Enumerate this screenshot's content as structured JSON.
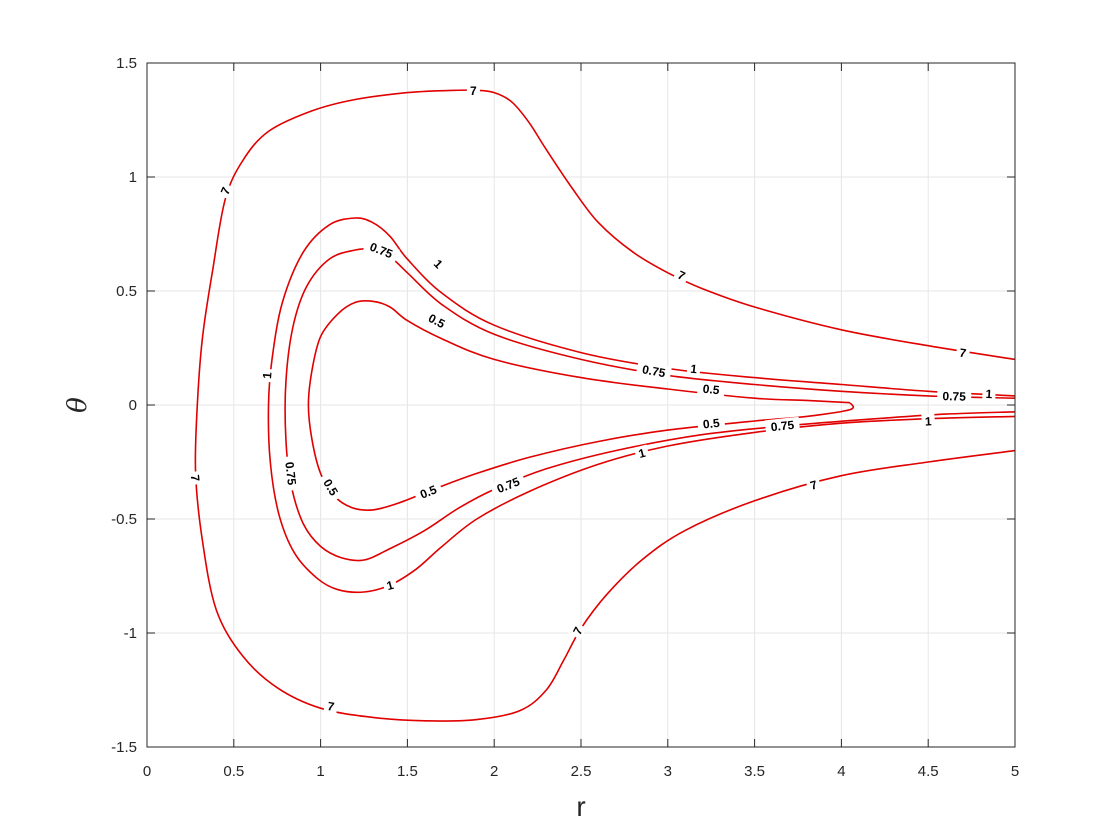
{
  "chart_data": {
    "type": "contour",
    "title": "",
    "xlabel": "r",
    "ylabel": "θ",
    "xlim": [
      0,
      5
    ],
    "ylim": [
      -1.5,
      1.5
    ],
    "grid": true,
    "line_color": "#e00000",
    "x_ticks": [
      "0",
      "0.5",
      "1",
      "1.5",
      "2",
      "2.5",
      "3",
      "3.5",
      "4",
      "4.5",
      "5"
    ],
    "y_ticks": [
      "-1.5",
      "-1",
      "-0.5",
      "0",
      "0.5",
      "1",
      "1.5"
    ],
    "levels": [
      {
        "level": "7",
        "paths": [
          [
            [
              5.0,
              0.2
            ],
            [
              4.5,
              0.26
            ],
            [
              4.0,
              0.33
            ],
            [
              3.5,
              0.43
            ],
            [
              3.2,
              0.51
            ],
            [
              3.0,
              0.58
            ],
            [
              2.8,
              0.67
            ],
            [
              2.6,
              0.8
            ],
            [
              2.45,
              0.95
            ],
            [
              2.3,
              1.12
            ],
            [
              2.2,
              1.24
            ],
            [
              2.1,
              1.33
            ],
            [
              2.0,
              1.37
            ],
            [
              1.9,
              1.38
            ],
            [
              1.75,
              1.38
            ],
            [
              1.5,
              1.37
            ],
            [
              1.2,
              1.34
            ],
            [
              0.95,
              1.29
            ],
            [
              0.7,
              1.2
            ],
            [
              0.55,
              1.07
            ],
            [
              0.45,
              0.9
            ],
            [
              0.38,
              0.6
            ],
            [
              0.32,
              0.3
            ],
            [
              0.29,
              0.0
            ],
            [
              0.28,
              -0.3
            ],
            [
              0.32,
              -0.6
            ],
            [
              0.4,
              -0.9
            ],
            [
              0.55,
              -1.1
            ],
            [
              0.75,
              -1.24
            ],
            [
              1.0,
              -1.33
            ],
            [
              1.3,
              -1.37
            ],
            [
              1.6,
              -1.385
            ],
            [
              1.9,
              -1.38
            ],
            [
              2.15,
              -1.34
            ],
            [
              2.3,
              -1.25
            ],
            [
              2.4,
              -1.12
            ],
            [
              2.5,
              -0.98
            ],
            [
              2.65,
              -0.83
            ],
            [
              2.85,
              -0.68
            ],
            [
              3.1,
              -0.55
            ],
            [
              3.5,
              -0.42
            ],
            [
              4.0,
              -0.31
            ],
            [
              4.5,
              -0.25
            ],
            [
              5.0,
              -0.2
            ]
          ]
        ],
        "labels": [
          [
            1.88,
            1.38
          ],
          [
            0.45,
            0.94
          ],
          [
            3.08,
            0.57
          ],
          [
            4.7,
            0.23
          ],
          [
            0.28,
            -0.32
          ],
          [
            1.06,
            -1.32
          ],
          [
            2.48,
            -0.99
          ],
          [
            3.84,
            -0.35
          ]
        ]
      },
      {
        "level": "1",
        "paths": [
          [
            [
              5.0,
              0.04
            ],
            [
              4.5,
              0.06
            ],
            [
              4.0,
              0.09
            ],
            [
              3.5,
              0.12
            ],
            [
              3.0,
              0.16
            ],
            [
              2.5,
              0.23
            ],
            [
              2.0,
              0.35
            ],
            [
              1.7,
              0.49
            ],
            [
              1.5,
              0.64
            ],
            [
              1.4,
              0.74
            ],
            [
              1.3,
              0.8
            ],
            [
              1.2,
              0.82
            ],
            [
              1.05,
              0.79
            ],
            [
              0.9,
              0.67
            ],
            [
              0.78,
              0.45
            ],
            [
              0.72,
              0.2
            ],
            [
              0.7,
              0.0
            ],
            [
              0.71,
              -0.25
            ],
            [
              0.76,
              -0.48
            ],
            [
              0.85,
              -0.65
            ],
            [
              0.98,
              -0.76
            ],
            [
              1.1,
              -0.81
            ],
            [
              1.25,
              -0.82
            ],
            [
              1.4,
              -0.79
            ],
            [
              1.55,
              -0.72
            ],
            [
              1.7,
              -0.62
            ],
            [
              1.9,
              -0.5
            ],
            [
              2.2,
              -0.38
            ],
            [
              2.6,
              -0.26
            ],
            [
              3.0,
              -0.18
            ],
            [
              3.5,
              -0.12
            ],
            [
              4.0,
              -0.08
            ],
            [
              4.5,
              -0.06
            ],
            [
              5.0,
              -0.05
            ]
          ]
        ],
        "labels": [
          [
            1.68,
            0.62
          ],
          [
            3.15,
            0.16
          ],
          [
            4.85,
            0.05
          ],
          [
            0.69,
            0.13
          ],
          [
            1.4,
            -0.79
          ],
          [
            2.85,
            -0.21
          ],
          [
            4.5,
            -0.07
          ]
        ]
      },
      {
        "level": "0.75",
        "paths": [
          [
            [
              5.0,
              0.03
            ],
            [
              4.5,
              0.04
            ],
            [
              4.0,
              0.06
            ],
            [
              3.5,
              0.09
            ],
            [
              3.0,
              0.13
            ],
            [
              2.5,
              0.2
            ],
            [
              2.0,
              0.31
            ],
            [
              1.7,
              0.44
            ],
            [
              1.5,
              0.58
            ],
            [
              1.4,
              0.65
            ],
            [
              1.3,
              0.68
            ],
            [
              1.2,
              0.68
            ],
            [
              1.05,
              0.64
            ],
            [
              0.92,
              0.52
            ],
            [
              0.84,
              0.34
            ],
            [
              0.8,
              0.1
            ],
            [
              0.8,
              -0.15
            ],
            [
              0.83,
              -0.35
            ],
            [
              0.9,
              -0.52
            ],
            [
              1.0,
              -0.62
            ],
            [
              1.12,
              -0.67
            ],
            [
              1.25,
              -0.68
            ],
            [
              1.4,
              -0.63
            ],
            [
              1.6,
              -0.55
            ],
            [
              1.8,
              -0.45
            ],
            [
              2.0,
              -0.37
            ],
            [
              2.3,
              -0.28
            ],
            [
              2.7,
              -0.2
            ],
            [
              3.2,
              -0.13
            ],
            [
              3.7,
              -0.09
            ],
            [
              4.2,
              -0.06
            ],
            [
              4.6,
              -0.04
            ],
            [
              5.0,
              -0.03
            ]
          ]
        ],
        "labels": [
          [
            1.35,
            0.68
          ],
          [
            2.92,
            0.15
          ],
          [
            4.65,
            0.04
          ],
          [
            0.83,
            -0.3
          ],
          [
            2.08,
            -0.35
          ],
          [
            3.66,
            -0.09
          ]
        ]
      },
      {
        "level": "0.5",
        "paths": [
          [
            [
              4.05,
              0.01
            ],
            [
              3.8,
              0.02
            ],
            [
              3.5,
              0.03
            ],
            [
              3.0,
              0.07
            ],
            [
              2.5,
              0.12
            ],
            [
              2.0,
              0.2
            ],
            [
              1.7,
              0.29
            ],
            [
              1.5,
              0.37
            ],
            [
              1.4,
              0.43
            ],
            [
              1.3,
              0.455
            ],
            [
              1.2,
              0.45
            ],
            [
              1.1,
              0.4
            ],
            [
              1.0,
              0.3
            ],
            [
              0.95,
              0.15
            ],
            [
              0.93,
              0.0
            ],
            [
              0.95,
              -0.15
            ],
            [
              1.0,
              -0.3
            ],
            [
              1.08,
              -0.4
            ],
            [
              1.18,
              -0.45
            ],
            [
              1.3,
              -0.46
            ],
            [
              1.45,
              -0.43
            ],
            [
              1.65,
              -0.37
            ],
            [
              1.9,
              -0.3
            ],
            [
              2.2,
              -0.23
            ],
            [
              2.6,
              -0.16
            ],
            [
              3.0,
              -0.11
            ],
            [
              3.5,
              -0.07
            ],
            [
              3.8,
              -0.05
            ],
            [
              4.05,
              -0.02
            ],
            [
              4.05,
              0.01
            ]
          ]
        ],
        "labels": [
          [
            1.67,
            0.37
          ],
          [
            3.25,
            0.07
          ],
          [
            1.06,
            -0.36
          ],
          [
            1.62,
            -0.38
          ],
          [
            3.25,
            -0.08
          ]
        ]
      }
    ]
  }
}
